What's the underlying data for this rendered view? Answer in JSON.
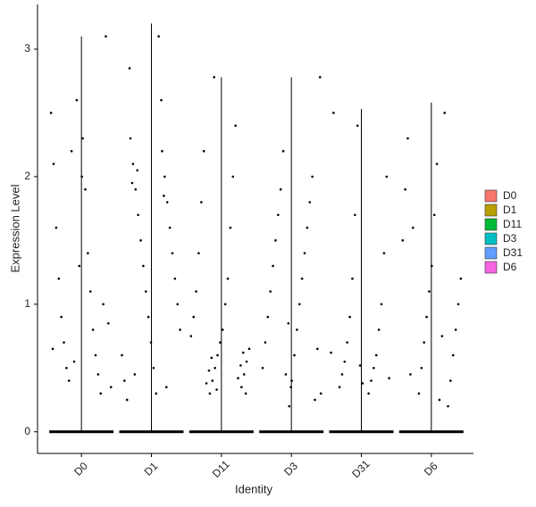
{
  "chart_data": {
    "type": "violin-jitter",
    "x_label": "Identity",
    "y_label": "Expression Level",
    "categories": [
      "D0",
      "D1",
      "D11",
      "D3",
      "D31",
      "D6"
    ],
    "colors": [
      "#F8766D",
      "#B79F00",
      "#00BA38",
      "#00BFC4",
      "#619CFF",
      "#F564E3"
    ],
    "legend": "right",
    "ylim": [
      -0.17,
      3.35
    ],
    "yticks": [
      0,
      1,
      2,
      3
    ],
    "violins": [
      {
        "min": 0,
        "max": 3.1,
        "points": [
          2.5,
          2.3,
          2.1,
          1.9,
          1.6,
          1.4,
          1.2,
          1.1,
          0.9,
          0.8,
          0.7,
          0.6,
          0.5,
          0.45,
          0.4,
          0.3,
          2.2,
          1.0,
          0.55,
          3.1,
          2.6,
          0.85,
          1.3,
          0.35,
          2.0,
          0.65
        ]
      },
      {
        "min": 0,
        "max": 3.2,
        "points": [
          2.3,
          2.2,
          2.1,
          2.0,
          1.9,
          1.8,
          1.7,
          1.6,
          1.5,
          1.4,
          1.3,
          1.2,
          1.1,
          1.0,
          0.9,
          0.8,
          0.7,
          0.6,
          0.5,
          0.4,
          0.3,
          0.25,
          3.1,
          2.85,
          2.6,
          1.95,
          1.85,
          0.45,
          0.35,
          2.05
        ]
      },
      {
        "min": 0,
        "max": 2.78,
        "points": [
          0.3,
          0.35,
          0.4,
          0.45,
          0.5,
          0.55,
          0.6,
          0.65,
          0.7,
          0.75,
          0.8,
          0.9,
          1.0,
          1.1,
          1.2,
          1.4,
          1.6,
          1.8,
          2.0,
          2.2,
          2.4,
          0.38,
          0.42,
          0.48,
          0.52,
          0.58,
          0.62,
          2.78,
          0.3,
          0.33
        ]
      },
      {
        "min": 0,
        "max": 2.78,
        "points": [
          0.2,
          0.3,
          0.4,
          0.5,
          0.6,
          0.7,
          0.8,
          0.9,
          1.0,
          1.1,
          1.2,
          1.3,
          1.4,
          1.5,
          1.6,
          1.7,
          1.8,
          1.9,
          2.0,
          2.2,
          0.25,
          0.45,
          0.65,
          0.85,
          2.78,
          0.35
        ]
      },
      {
        "min": 0,
        "max": 2.53,
        "points": [
          0.3,
          0.35,
          0.4,
          0.45,
          0.5,
          0.55,
          0.6,
          0.7,
          0.8,
          0.9,
          1.0,
          1.2,
          1.4,
          1.7,
          2.0,
          2.4,
          0.42,
          0.52,
          0.62,
          0.38,
          2.5
        ]
      },
      {
        "min": 0,
        "max": 2.58,
        "points": [
          0.2,
          0.3,
          0.4,
          0.5,
          0.6,
          0.7,
          0.8,
          0.9,
          1.0,
          1.1,
          1.2,
          1.3,
          1.5,
          1.7,
          1.9,
          2.1,
          2.3,
          0.25,
          0.45,
          0.75,
          1.6,
          2.5
        ]
      }
    ]
  }
}
